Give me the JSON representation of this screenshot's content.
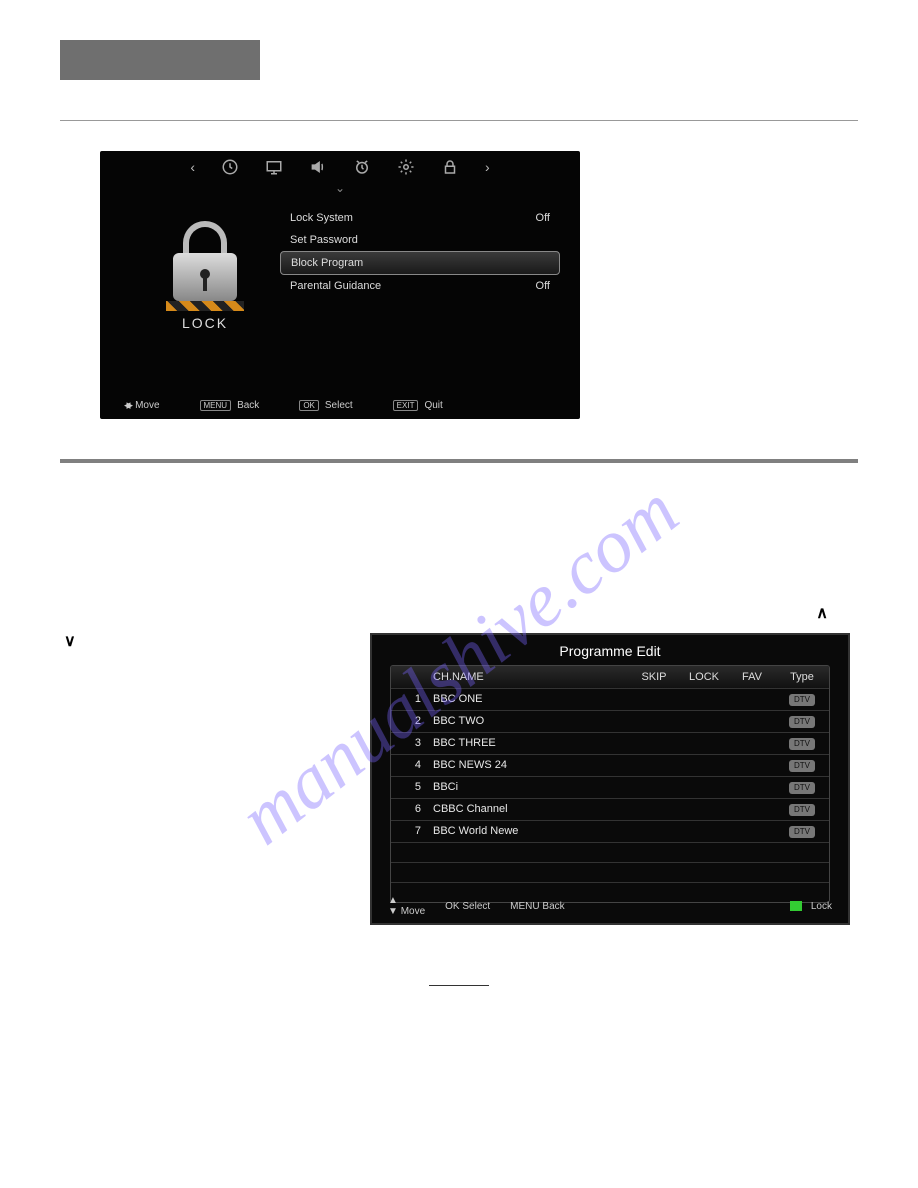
{
  "colors": {
    "page_bg": "#ffffff",
    "grey_strip": "#6f6f6f",
    "screen_bg": "#050505",
    "text_light": "#e8e8e8",
    "watermark": "rgba(120,100,255,0.38)",
    "type_badge_bg": "#777777",
    "lock_indicator": "#33cc33",
    "row_border": "#333333"
  },
  "watermark_text": "manualshive.com",
  "lock_menu": {
    "section_label": "LOCK",
    "items": [
      {
        "label": "Lock System",
        "value": "Off",
        "selected": false
      },
      {
        "label": "Set Password",
        "value": "",
        "selected": false
      },
      {
        "label": "Block Program",
        "value": "",
        "selected": true
      },
      {
        "label": "Parental Guidance",
        "value": "Off",
        "selected": false
      }
    ],
    "footer": {
      "move": "Move",
      "back_key": "MENU",
      "back": "Back",
      "select_key": "OK",
      "select": "Select",
      "quit_key": "EXIT",
      "quit": "Quit"
    },
    "topbar_icons": [
      "chevron-left",
      "clock",
      "monitor",
      "speaker",
      "alarm",
      "gear",
      "lock",
      "chevron-right"
    ]
  },
  "programme_edit": {
    "title": "Programme Edit",
    "columns": {
      "name": "CH.NAME",
      "skip": "SKIP",
      "lock": "LOCK",
      "fav": "FAV",
      "type": "Type"
    },
    "type_badge_text": "DTV",
    "rows": [
      {
        "num": "1",
        "name": "BBC ONE"
      },
      {
        "num": "2",
        "name": "BBC TWO"
      },
      {
        "num": "3",
        "name": "BBC THREE"
      },
      {
        "num": "4",
        "name": "BBC NEWS 24"
      },
      {
        "num": "5",
        "name": "BBCi"
      },
      {
        "num": "6",
        "name": "CBBC Channel"
      },
      {
        "num": "7",
        "name": "BBC World Newe"
      }
    ],
    "empty_rows": 3,
    "footer": {
      "move": "Move",
      "select_key": "OK",
      "select": "Select",
      "back_key": "MENU",
      "back": "Back",
      "lock_label": "Lock"
    }
  },
  "caret_up": "∧",
  "caret_down": "∨"
}
